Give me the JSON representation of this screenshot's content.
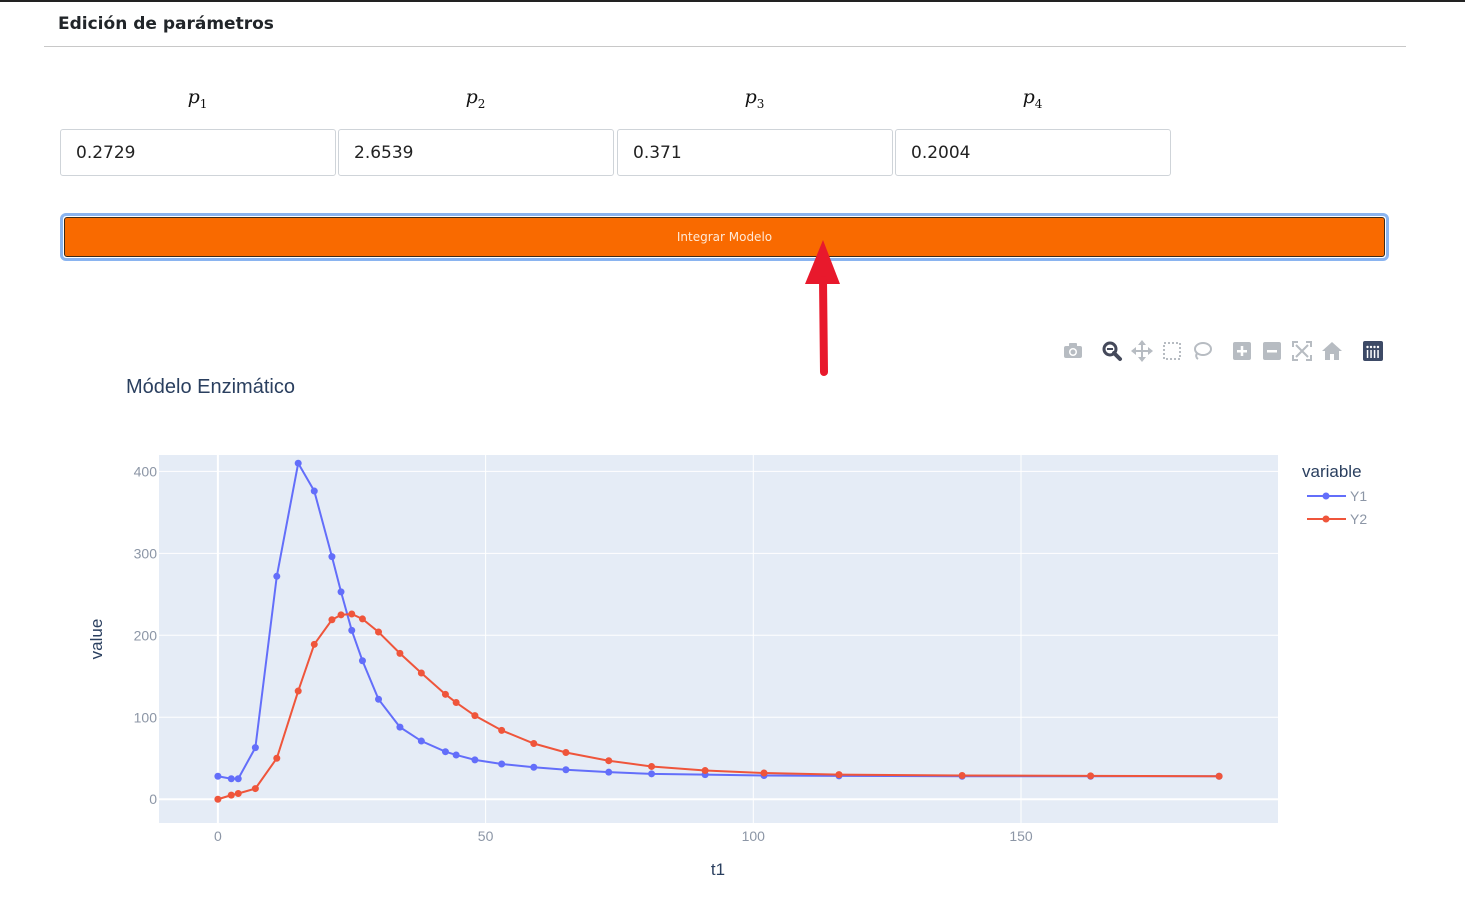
{
  "section": {
    "title": "Edición de parámetros"
  },
  "params": [
    {
      "symbol": "p",
      "index": "1",
      "value": "0.2729"
    },
    {
      "symbol": "p",
      "index": "2",
      "value": "2.6539"
    },
    {
      "symbol": "p",
      "index": "3",
      "value": "0.371"
    },
    {
      "symbol": "p",
      "index": "4",
      "value": "0.2004"
    }
  ],
  "button": {
    "label": "Integrar Modelo",
    "color": "#f96a00"
  },
  "annotation": {
    "arrow_color": "#e8192c"
  },
  "modebar": {
    "icons": [
      "camera-icon",
      "zoom-icon",
      "pan-icon",
      "box-select-icon",
      "lasso-select-icon",
      "zoom-in-icon",
      "zoom-out-icon",
      "autoscale-icon",
      "reset-axes-icon",
      "plotly-logo-icon"
    ]
  },
  "chart_data": {
    "type": "line",
    "title": "Módelo Enzimático",
    "xlabel": "t1",
    "ylabel": "value",
    "xlim": [
      -11,
      198
    ],
    "ylim": [
      -29,
      420
    ],
    "xticks": [
      0,
      50,
      100,
      150
    ],
    "yticks": [
      0,
      100,
      200,
      300,
      400
    ],
    "grid": true,
    "legend": {
      "title": "variable",
      "position": "top-right"
    },
    "series": [
      {
        "name": "Y1",
        "color": "#636efa",
        "x": [
          0,
          2.5,
          3.8,
          7,
          11,
          15,
          18,
          21.3,
          23,
          25,
          27,
          30,
          34,
          38,
          42.5,
          44.5,
          48,
          53,
          59,
          65,
          73,
          81,
          91,
          102,
          116,
          139,
          163,
          187
        ],
        "y": [
          28,
          25,
          25,
          63,
          272,
          410,
          376,
          296,
          253,
          206,
          169,
          122,
          88,
          71,
          58,
          54,
          48,
          43,
          39,
          36,
          33,
          31,
          30,
          29,
          28.5,
          28,
          28,
          28
        ]
      },
      {
        "name": "Y2",
        "color": "#ef553b",
        "x": [
          0,
          2.5,
          3.8,
          7,
          11,
          15,
          18,
          21.3,
          23,
          25,
          27,
          30,
          34,
          38,
          42.5,
          44.5,
          48,
          53,
          59,
          65,
          73,
          81,
          91,
          102,
          116,
          139,
          163,
          187
        ],
        "y": [
          0,
          5,
          7,
          13,
          50,
          132,
          189,
          219,
          225,
          226,
          220,
          204,
          178,
          154,
          128,
          118,
          102,
          84,
          68,
          57,
          47,
          40,
          35,
          32,
          30,
          29,
          28.5,
          28
        ]
      }
    ]
  }
}
